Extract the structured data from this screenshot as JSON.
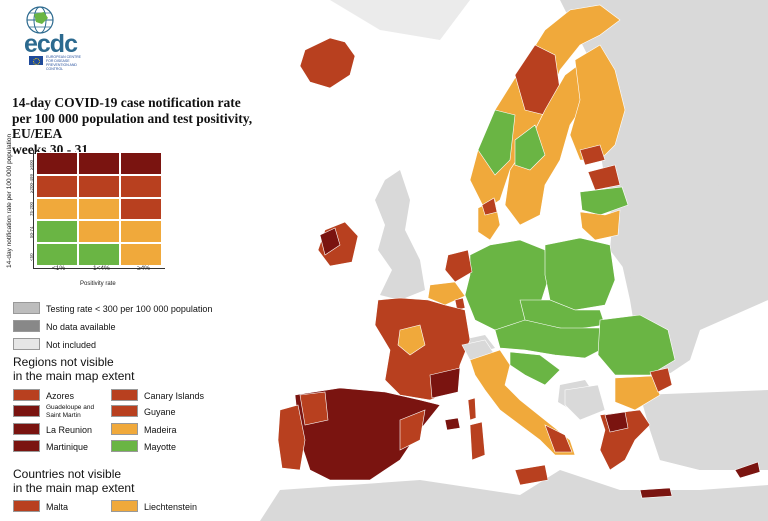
{
  "logo": {
    "text": "ecdc",
    "subtitle": "EUROPEAN CENTRE FOR DISEASE PREVENTION AND CONTROL"
  },
  "title": {
    "line1": "14-day COVID-19 case notification rate",
    "line2": "per 100 000 population and test positivity, EU/EEA",
    "line3": "weeks 30 - 31"
  },
  "matrix": {
    "y_axis_label": "14-day notification rate per 100 000 population",
    "x_axis_label": "Positivity rate",
    "x_ticks": [
      "<1%",
      "1<4%",
      "≥4%"
    ],
    "y_ticks": [
      "≥500",
      "≥200-499",
      "75-200",
      "50-74",
      "<50"
    ],
    "cells": [
      [
        "#7a1410",
        "#7a1410",
        "#7a1410"
      ],
      [
        "#b8401f",
        "#b8401f",
        "#b8401f"
      ],
      [
        "#f0a93b",
        "#f0a93b",
        "#b8401f"
      ],
      [
        "#6ab544",
        "#f0a93b",
        "#f0a93b"
      ],
      [
        "#6ab544",
        "#6ab544",
        "#f0a93b"
      ]
    ]
  },
  "legend_status": [
    {
      "label": "Testing rate < 300 per 100 000 population",
      "color": "#bdbdbd"
    },
    {
      "label": "No data available",
      "color": "#888888"
    },
    {
      "label": "Not included",
      "color": "#e6e6e6"
    }
  ],
  "regions": {
    "heading_line1": "Regions not visible",
    "heading_line2": "in the main map extent",
    "left": [
      {
        "label": "Azores",
        "color": "#b8401f"
      },
      {
        "label": "Guadeloupe and Saint Martin",
        "color": "#7a1410"
      },
      {
        "label": "La Reunion",
        "color": "#7a1410"
      },
      {
        "label": "Martinique",
        "color": "#7a1410"
      }
    ],
    "right": [
      {
        "label": "Canary Islands",
        "color": "#b8401f"
      },
      {
        "label": "Guyane",
        "color": "#b8401f"
      },
      {
        "label": "Madeira",
        "color": "#f0a93b"
      },
      {
        "label": "Mayotte",
        "color": "#6ab544"
      }
    ]
  },
  "countries": {
    "heading_line1": "Countries not visible",
    "heading_line2": "in the main map extent",
    "items": [
      {
        "label": "Malta",
        "color": "#b8401f"
      },
      {
        "label": "Liechtenstein",
        "color": "#f0a93b"
      }
    ]
  },
  "colors": {
    "sea": "#ffffff",
    "non_eu": "#d9d9d9",
    "dark_red": "#7a1410",
    "red": "#b8401f",
    "orange": "#f0a93b",
    "green": "#6ab544"
  }
}
